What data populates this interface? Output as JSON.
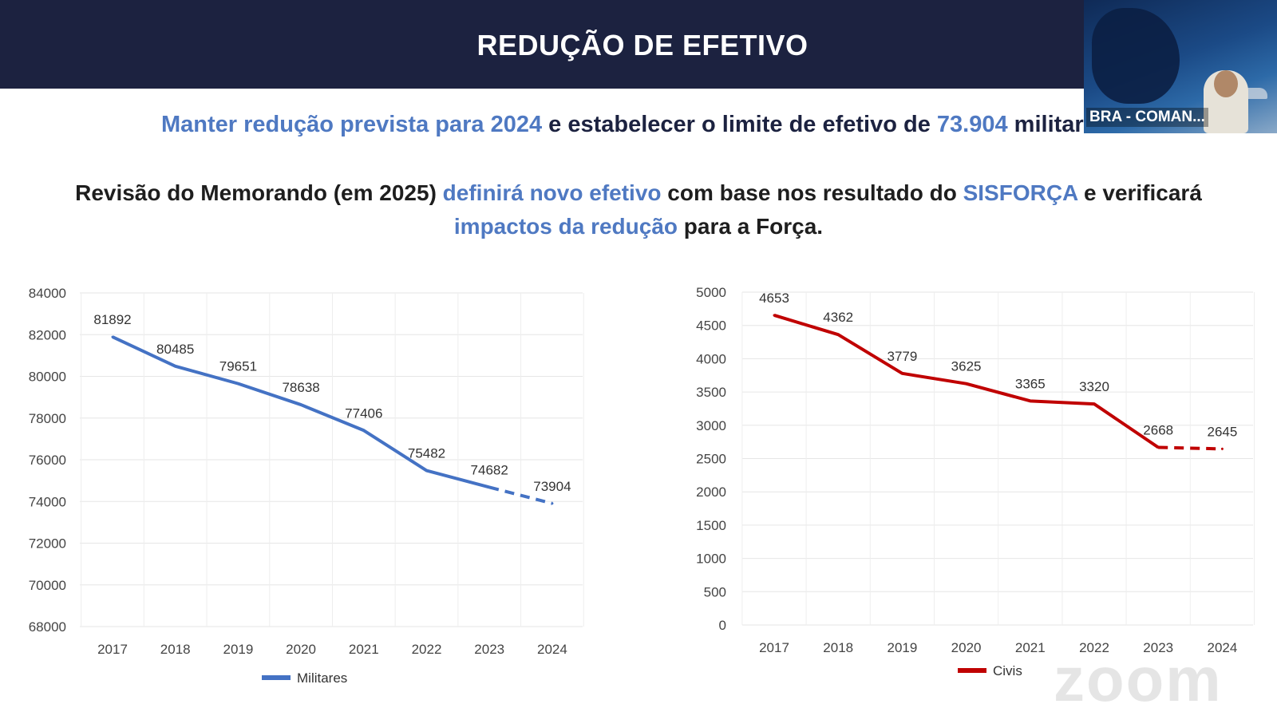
{
  "header": {
    "title": "REDUÇÃO DE EFETIVO"
  },
  "text": {
    "line1": {
      "part1": "Manter redução prevista para 2024",
      "part2": " e estabelecer o limite de efetivo de ",
      "part3": "73.904",
      "part4": " militares."
    },
    "line2": {
      "part1": "Revisão do Memorando (em 2025) ",
      "part2": "definirá novo efetivo",
      "part3": " com base nos  resultado do ",
      "part4": "SISFORÇA",
      "part5": " e verificará"
    },
    "line3": {
      "part1": "impactos da redução",
      "part2": " para a Força."
    }
  },
  "video": {
    "label": "BRA - COMAN..."
  },
  "watermark": "zoom",
  "colors": {
    "header_bg": "#1c2240",
    "highlight": "#4f79c2",
    "militares": "#4472c4",
    "civis": "#c00000"
  },
  "chart_data": [
    {
      "type": "line",
      "categories": [
        "2017",
        "2018",
        "2019",
        "2020",
        "2021",
        "2022",
        "2023",
        "2024"
      ],
      "series": [
        {
          "name": "Militares",
          "values": [
            81892,
            80485,
            79651,
            78638,
            77406,
            75482,
            74682,
            73904
          ],
          "projected_from_index": 6,
          "color": "#4472c4"
        }
      ],
      "yticks": [
        "84000",
        "82000",
        "80000",
        "78000",
        "76000",
        "74000",
        "72000",
        "70000",
        "68000"
      ],
      "ylim": [
        68000,
        84000
      ],
      "grid": true,
      "legend_position": "bottom"
    },
    {
      "type": "line",
      "categories": [
        "2017",
        "2018",
        "2019",
        "2020",
        "2021",
        "2022",
        "2023",
        "2024"
      ],
      "series": [
        {
          "name": "Civis",
          "values": [
            4653,
            4362,
            3779,
            3625,
            3365,
            3320,
            2668,
            2645
          ],
          "projected_from_index": 6,
          "color": "#c00000"
        }
      ],
      "yticks": [
        "5000",
        "4500",
        "4000",
        "3500",
        "3000",
        "2500",
        "2000",
        "1500",
        "1000",
        "500",
        "0"
      ],
      "ylim": [
        0,
        5000
      ],
      "grid": true,
      "legend_position": "bottom"
    }
  ]
}
